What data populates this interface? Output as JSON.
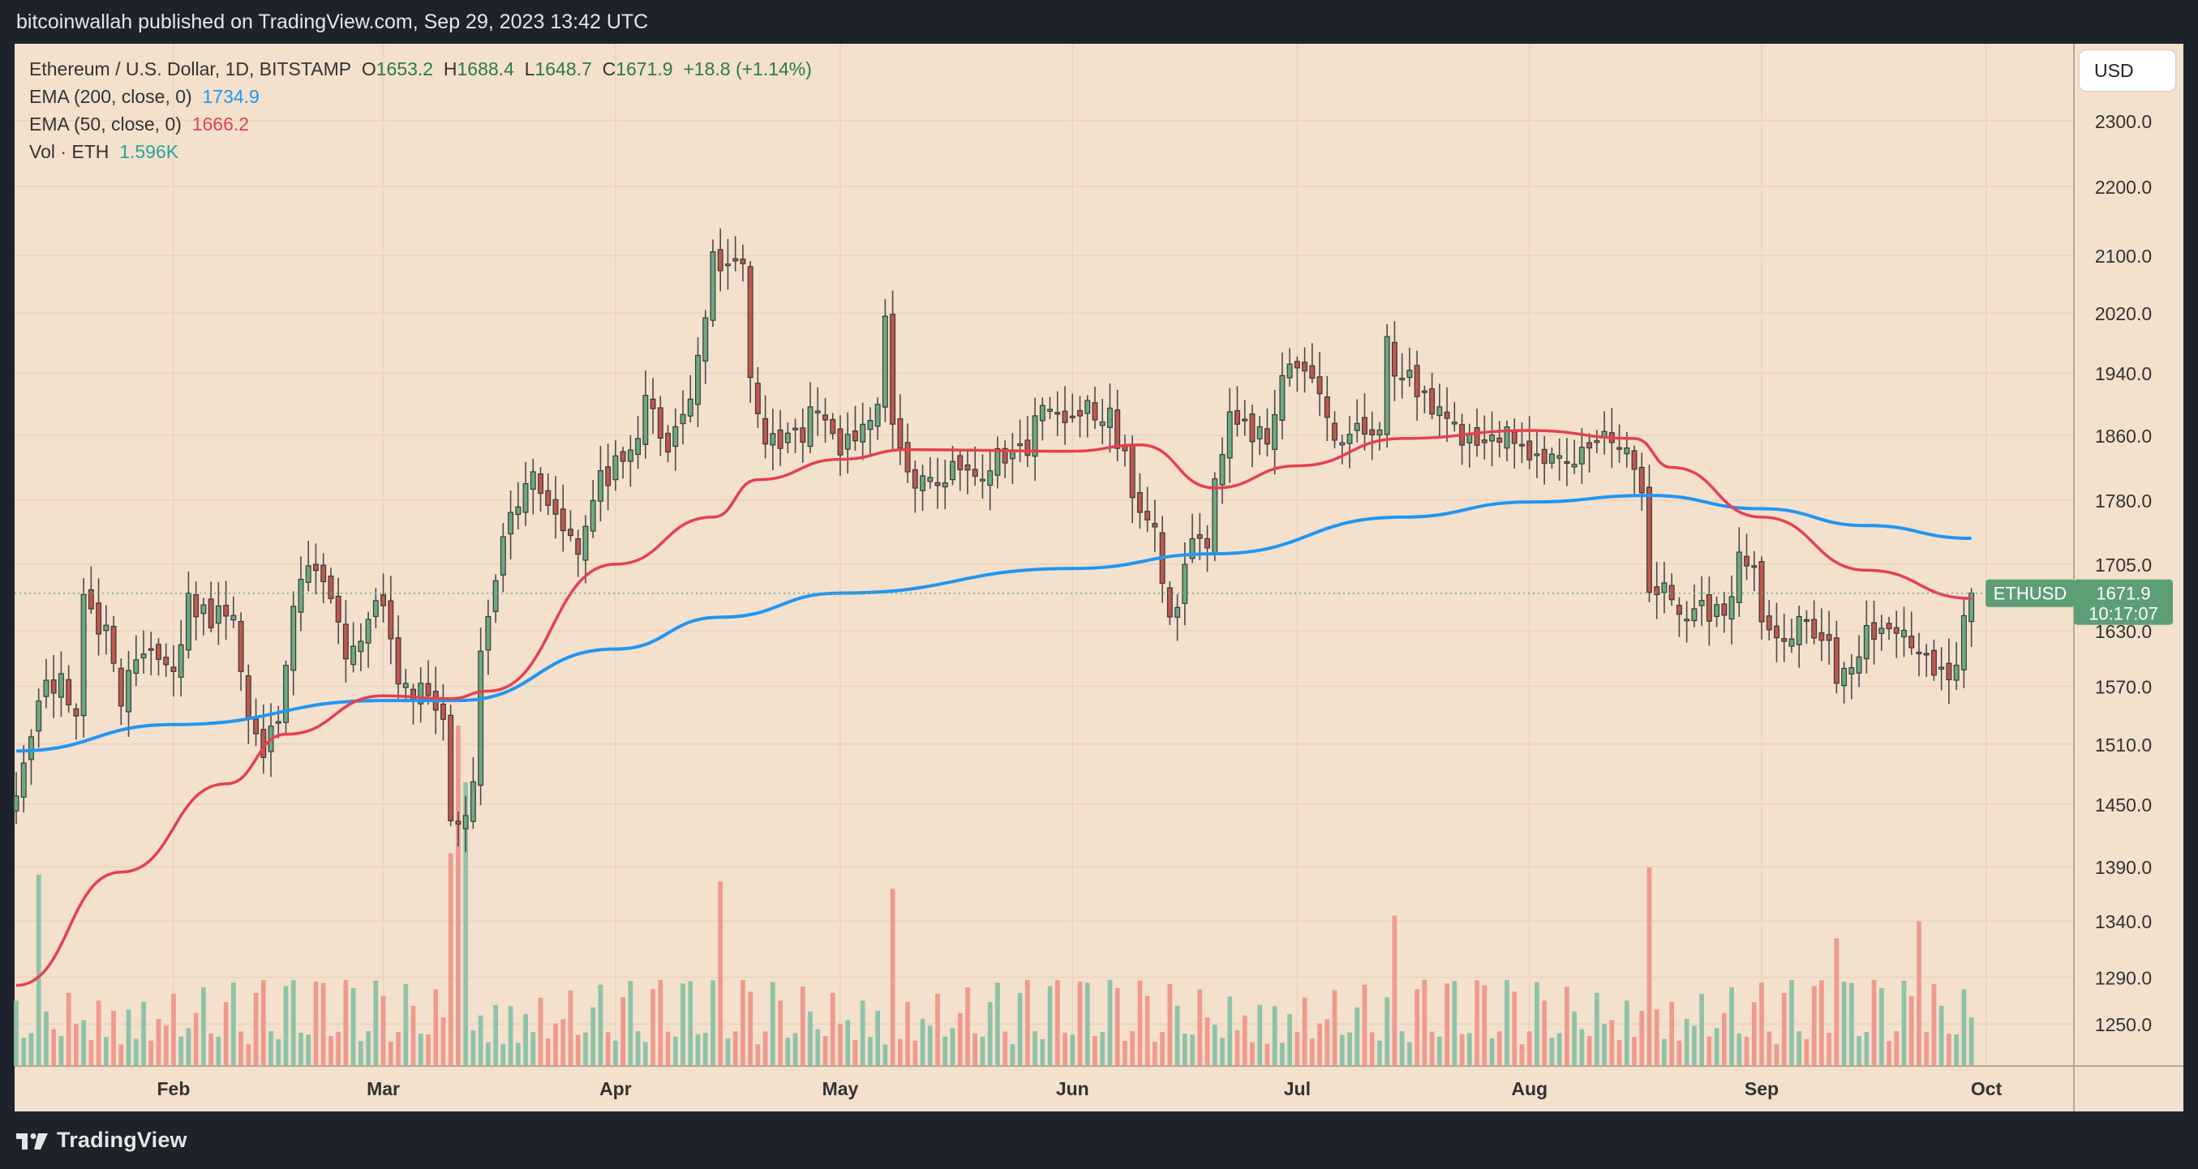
{
  "header": {
    "publisher_line": "bitcoinwallah published on TradingView.com, Sep 29, 2023 13:42 UTC"
  },
  "footer": {
    "brand": "TradingView"
  },
  "legend": {
    "symbol": "Ethereum / U.S. Dollar, 1D, BITSTAMP",
    "o_label": "O",
    "o_value": "1653.2",
    "h_label": "H",
    "h_value": "1688.4",
    "l_label": "L",
    "l_value": "1648.7",
    "c_label": "C",
    "c_value": "1671.9",
    "change": "+18.8 (+1.14%)",
    "ema200_label": "EMA (200, close, 0)",
    "ema200_value": "1734.9",
    "ema50_label": "EMA (50, close, 0)",
    "ema50_value": "1666.2",
    "vol_label": "Vol · ETH",
    "vol_value": "1.596K"
  },
  "currency_button": "USD",
  "price_tag": {
    "symbol": "ETHUSD",
    "price": "1671.9",
    "countdown": "10:17:07"
  },
  "colors": {
    "background": "#f3e0cd",
    "up": "#6aaa80",
    "down": "#c0574d",
    "vol_up": "#8ec3a8",
    "vol_down": "#ef9a8e",
    "ema200": "#2196f3",
    "ema50": "#e5404f"
  },
  "chart_data": {
    "type": "candlestick",
    "symbol": "ETHUSD",
    "interval": "1D",
    "exchange": "BITSTAMP",
    "y_axis_scale": "log",
    "ylim": [
      1215,
      2420
    ],
    "y_ticks": [
      "2300.0",
      "2200.0",
      "2100.0",
      "2020.0",
      "1940.0",
      "1860.0",
      "1780.0",
      "1705.0",
      "1630.0",
      "1570.0",
      "1510.0",
      "1450.0",
      "1390.0",
      "1340.0",
      "1290.0",
      "1250.0"
    ],
    "x_ticks": [
      {
        "label": "Feb",
        "date": "2023-02-01"
      },
      {
        "label": "Mar",
        "date": "2023-03-01"
      },
      {
        "label": "Apr",
        "date": "2023-04-01"
      },
      {
        "label": "May",
        "date": "2023-05-01"
      },
      {
        "label": "Jun",
        "date": "2023-06-01"
      },
      {
        "label": "Jul",
        "date": "2023-07-01"
      },
      {
        "label": "Aug",
        "date": "2023-08-01"
      },
      {
        "label": "Sep",
        "date": "2023-09-01"
      },
      {
        "label": "Oct",
        "date": "2023-10-01"
      }
    ],
    "x_range": [
      "2023-01-11",
      "2023-10-26"
    ],
    "last_close": 1671.9,
    "volume_max_visible": 2400,
    "ohlc_anchors": [
      {
        "date": "2023-01-11",
        "price": 1450
      },
      {
        "date": "2023-01-14",
        "price": 1560
      },
      {
        "date": "2023-01-17",
        "price": 1580
      },
      {
        "date": "2023-01-19",
        "price": 1530
      },
      {
        "date": "2023-01-20",
        "price": 1660
      },
      {
        "date": "2023-01-23",
        "price": 1630
      },
      {
        "date": "2023-01-25",
        "price": 1560
      },
      {
        "date": "2023-01-28",
        "price": 1600
      },
      {
        "date": "2023-02-01",
        "price": 1580
      },
      {
        "date": "2023-02-03",
        "price": 1660
      },
      {
        "date": "2023-02-06",
        "price": 1640
      },
      {
        "date": "2023-02-09",
        "price": 1660
      },
      {
        "date": "2023-02-11",
        "price": 1540
      },
      {
        "date": "2023-02-13",
        "price": 1505
      },
      {
        "date": "2023-02-15",
        "price": 1540
      },
      {
        "date": "2023-02-17",
        "price": 1660
      },
      {
        "date": "2023-02-19",
        "price": 1690
      },
      {
        "date": "2023-02-21",
        "price": 1680
      },
      {
        "date": "2023-02-24",
        "price": 1610
      },
      {
        "date": "2023-02-27",
        "price": 1640
      },
      {
        "date": "2023-03-01",
        "price": 1660
      },
      {
        "date": "2023-03-03",
        "price": 1570
      },
      {
        "date": "2023-03-06",
        "price": 1565
      },
      {
        "date": "2023-03-09",
        "price": 1540
      },
      {
        "date": "2023-03-10",
        "price": 1430
      },
      {
        "date": "2023-03-11",
        "price": 1420
      },
      {
        "date": "2023-03-13",
        "price": 1480
      },
      {
        "date": "2023-03-14",
        "price": 1600
      },
      {
        "date": "2023-03-16",
        "price": 1680
      },
      {
        "date": "2023-03-18",
        "price": 1770
      },
      {
        "date": "2023-03-21",
        "price": 1800
      },
      {
        "date": "2023-03-24",
        "price": 1760
      },
      {
        "date": "2023-03-27",
        "price": 1710
      },
      {
        "date": "2023-03-29",
        "price": 1790
      },
      {
        "date": "2023-04-01",
        "price": 1820
      },
      {
        "date": "2023-04-04",
        "price": 1860
      },
      {
        "date": "2023-04-05",
        "price": 1900
      },
      {
        "date": "2023-04-08",
        "price": 1850
      },
      {
        "date": "2023-04-11",
        "price": 1910
      },
      {
        "date": "2023-04-13",
        "price": 2010
      },
      {
        "date": "2023-04-14",
        "price": 2100
      },
      {
        "date": "2023-04-16",
        "price": 2090
      },
      {
        "date": "2023-04-18",
        "price": 2100
      },
      {
        "date": "2023-04-19",
        "price": 1940
      },
      {
        "date": "2023-04-21",
        "price": 1860
      },
      {
        "date": "2023-04-23",
        "price": 1860
      },
      {
        "date": "2023-04-26",
        "price": 1860
      },
      {
        "date": "2023-04-28",
        "price": 1900
      },
      {
        "date": "2023-05-01",
        "price": 1840
      },
      {
        "date": "2023-05-04",
        "price": 1880
      },
      {
        "date": "2023-05-06",
        "price": 1910
      },
      {
        "date": "2023-05-07",
        "price": 2000
      },
      {
        "date": "2023-05-08",
        "price": 1870
      },
      {
        "date": "2023-05-11",
        "price": 1800
      },
      {
        "date": "2023-05-14",
        "price": 1800
      },
      {
        "date": "2023-05-17",
        "price": 1820
      },
      {
        "date": "2023-05-20",
        "price": 1820
      },
      {
        "date": "2023-05-23",
        "price": 1840
      },
      {
        "date": "2023-05-26",
        "price": 1830
      },
      {
        "date": "2023-05-28",
        "price": 1910
      },
      {
        "date": "2023-05-31",
        "price": 1870
      },
      {
        "date": "2023-06-03",
        "price": 1890
      },
      {
        "date": "2023-06-06",
        "price": 1880
      },
      {
        "date": "2023-06-08",
        "price": 1840
      },
      {
        "date": "2023-06-10",
        "price": 1750
      },
      {
        "date": "2023-06-12",
        "price": 1740
      },
      {
        "date": "2023-06-14",
        "price": 1650
      },
      {
        "date": "2023-06-15",
        "price": 1660
      },
      {
        "date": "2023-06-17",
        "price": 1720
      },
      {
        "date": "2023-06-19",
        "price": 1730
      },
      {
        "date": "2023-06-20",
        "price": 1800
      },
      {
        "date": "2023-06-22",
        "price": 1880
      },
      {
        "date": "2023-06-24",
        "price": 1870
      },
      {
        "date": "2023-06-27",
        "price": 1860
      },
      {
        "date": "2023-06-29",
        "price": 1930
      },
      {
        "date": "2023-07-02",
        "price": 1950
      },
      {
        "date": "2023-07-04",
        "price": 1920
      },
      {
        "date": "2023-07-06",
        "price": 1850
      },
      {
        "date": "2023-07-09",
        "price": 1860
      },
      {
        "date": "2023-07-12",
        "price": 1880
      },
      {
        "date": "2023-07-13",
        "price": 2000
      },
      {
        "date": "2023-07-14",
        "price": 1940
      },
      {
        "date": "2023-07-17",
        "price": 1920
      },
      {
        "date": "2023-07-20",
        "price": 1890
      },
      {
        "date": "2023-07-23",
        "price": 1860
      },
      {
        "date": "2023-07-26",
        "price": 1860
      },
      {
        "date": "2023-07-29",
        "price": 1870
      },
      {
        "date": "2023-08-01",
        "price": 1830
      },
      {
        "date": "2023-08-04",
        "price": 1830
      },
      {
        "date": "2023-08-07",
        "price": 1840
      },
      {
        "date": "2023-08-10",
        "price": 1850
      },
      {
        "date": "2023-08-13",
        "price": 1845
      },
      {
        "date": "2023-08-15",
        "price": 1830
      },
      {
        "date": "2023-08-16",
        "price": 1800
      },
      {
        "date": "2023-08-17",
        "price": 1680
      },
      {
        "date": "2023-08-19",
        "price": 1670
      },
      {
        "date": "2023-08-22",
        "price": 1650
      },
      {
        "date": "2023-08-25",
        "price": 1650
      },
      {
        "date": "2023-08-28",
        "price": 1655
      },
      {
        "date": "2023-08-29",
        "price": 1730
      },
      {
        "date": "2023-08-31",
        "price": 1705
      },
      {
        "date": "2023-09-01",
        "price": 1640
      },
      {
        "date": "2023-09-04",
        "price": 1630
      },
      {
        "date": "2023-09-07",
        "price": 1640
      },
      {
        "date": "2023-09-10",
        "price": 1620
      },
      {
        "date": "2023-09-11",
        "price": 1560
      },
      {
        "date": "2023-09-13",
        "price": 1600
      },
      {
        "date": "2023-09-15",
        "price": 1630
      },
      {
        "date": "2023-09-18",
        "price": 1640
      },
      {
        "date": "2023-09-20",
        "price": 1620
      },
      {
        "date": "2023-09-22",
        "price": 1600
      },
      {
        "date": "2023-09-25",
        "price": 1580
      },
      {
        "date": "2023-09-27",
        "price": 1600
      },
      {
        "date": "2023-09-28",
        "price": 1653
      },
      {
        "date": "2023-09-29",
        "price": 1672
      }
    ],
    "ema200": [
      {
        "date": "2023-01-11",
        "value": 1503
      },
      {
        "date": "2023-02-01",
        "value": 1530
      },
      {
        "date": "2023-03-01",
        "value": 1555
      },
      {
        "date": "2023-03-11",
        "value": 1555
      },
      {
        "date": "2023-04-01",
        "value": 1610
      },
      {
        "date": "2023-04-15",
        "value": 1645
      },
      {
        "date": "2023-05-01",
        "value": 1672
      },
      {
        "date": "2023-06-01",
        "value": 1700
      },
      {
        "date": "2023-06-20",
        "value": 1717
      },
      {
        "date": "2023-07-15",
        "value": 1760
      },
      {
        "date": "2023-08-01",
        "value": 1778
      },
      {
        "date": "2023-08-17",
        "value": 1786
      },
      {
        "date": "2023-09-01",
        "value": 1770
      },
      {
        "date": "2023-09-15",
        "value": 1750
      },
      {
        "date": "2023-09-29",
        "value": 1735
      }
    ],
    "ema50": [
      {
        "date": "2023-01-11",
        "value": 1283
      },
      {
        "date": "2023-01-25",
        "value": 1385
      },
      {
        "date": "2023-02-08",
        "value": 1470
      },
      {
        "date": "2023-02-16",
        "value": 1520
      },
      {
        "date": "2023-03-01",
        "value": 1560
      },
      {
        "date": "2023-03-10",
        "value": 1557
      },
      {
        "date": "2023-03-15",
        "value": 1565
      },
      {
        "date": "2023-04-01",
        "value": 1705
      },
      {
        "date": "2023-04-14",
        "value": 1760
      },
      {
        "date": "2023-04-20",
        "value": 1805
      },
      {
        "date": "2023-05-01",
        "value": 1830
      },
      {
        "date": "2023-05-10",
        "value": 1842
      },
      {
        "date": "2023-06-01",
        "value": 1840
      },
      {
        "date": "2023-06-10",
        "value": 1848
      },
      {
        "date": "2023-06-20",
        "value": 1795
      },
      {
        "date": "2023-07-01",
        "value": 1822
      },
      {
        "date": "2023-07-15",
        "value": 1856
      },
      {
        "date": "2023-08-01",
        "value": 1866
      },
      {
        "date": "2023-08-15",
        "value": 1856
      },
      {
        "date": "2023-08-20",
        "value": 1820
      },
      {
        "date": "2023-09-01",
        "value": 1760
      },
      {
        "date": "2023-09-15",
        "value": 1698
      },
      {
        "date": "2023-09-29",
        "value": 1666
      }
    ],
    "volume": {
      "spikes": [
        {
          "date": "2023-03-11",
          "value": 2400
        },
        {
          "date": "2023-03-10",
          "value": 1500
        },
        {
          "date": "2023-03-12",
          "value": 2000
        },
        {
          "date": "2023-04-15",
          "value": 1300
        },
        {
          "date": "2023-05-08",
          "value": 1250
        },
        {
          "date": "2023-07-14",
          "value": 1060
        },
        {
          "date": "2023-08-17",
          "value": 1400
        },
        {
          "date": "2023-09-11",
          "value": 900
        },
        {
          "date": "2023-09-22",
          "value": 1020
        },
        {
          "date": "2023-01-14",
          "value": 1350
        }
      ]
    }
  }
}
